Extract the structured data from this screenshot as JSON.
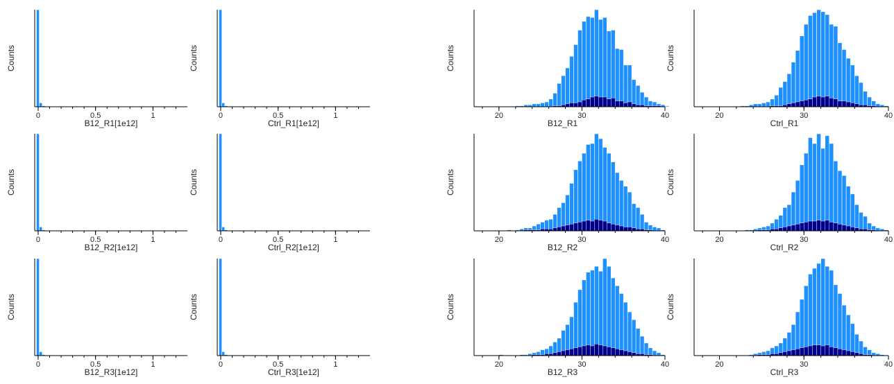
{
  "colors": {
    "all": "#1E90FF",
    "gated": "#00008B",
    "axis": "#000000",
    "bar_edge": "#ffffff"
  },
  "chart_data": [
    {
      "id": "lin_B12_R1",
      "type": "bar",
      "style": "linear",
      "xlabel": "B12_R1[1e12]",
      "ylabel": "Counts",
      "xlim": [
        -0.03,
        1.3
      ],
      "xticks": [
        0,
        0.5,
        1
      ],
      "xtick_labels": [
        "0",
        "0.5",
        "1"
      ],
      "bin_width": 0.025,
      "bin_start": -0.015,
      "ymax": 1.0,
      "all_values": [
        1.0,
        0.04,
        0.01,
        0.005
      ]
    },
    {
      "id": "lin_Ctrl_R1",
      "type": "bar",
      "style": "linear",
      "xlabel": "Ctrl_R1[1e12]",
      "ylabel": "Counts",
      "xlim": [
        -0.03,
        1.3
      ],
      "xticks": [
        0,
        0.5,
        1
      ],
      "xtick_labels": [
        "0",
        "0.5",
        "1"
      ],
      "bin_width": 0.025,
      "bin_start": -0.015,
      "ymax": 1.0,
      "all_values": [
        1.0,
        0.04,
        0.01,
        0.005
      ]
    },
    {
      "id": "log_B12_R1",
      "type": "bar",
      "style": "log",
      "xlabel": "B12_R1",
      "ylabel": "Counts",
      "xlim": [
        17,
        40
      ],
      "xticks": [
        20,
        30,
        40
      ],
      "xtick_labels": [
        "20",
        "30",
        "40"
      ],
      "bin_width": 0.5,
      "bin_start": 17.5,
      "ymax": 100,
      "all_values": [
        0,
        0,
        0,
        0,
        0,
        0,
        0,
        0,
        0,
        1,
        1,
        2,
        2,
        3,
        3,
        4,
        5,
        8,
        14,
        24,
        32,
        40,
        52,
        64,
        79,
        88,
        93,
        92,
        100,
        90,
        92,
        78,
        79,
        60,
        59,
        43,
        43,
        28,
        22,
        15,
        10,
        6,
        5,
        3,
        2,
        1
      ],
      "gated_values": [
        0,
        0,
        0,
        0,
        0,
        0,
        0,
        0,
        0,
        0,
        0,
        0,
        0,
        0,
        0,
        0,
        0,
        0,
        1,
        1,
        2,
        3,
        4,
        4,
        5,
        7,
        8,
        10,
        11,
        10,
        10,
        8,
        9,
        6,
        6,
        4,
        5,
        3,
        2,
        2,
        1,
        1,
        1,
        1,
        0,
        0
      ]
    },
    {
      "id": "log_Ctrl_R1",
      "type": "bar",
      "style": "log",
      "xlabel": "Ctrl_R1",
      "ylabel": "Counts",
      "xlim": [
        17,
        40
      ],
      "xticks": [
        20,
        30,
        40
      ],
      "xtick_labels": [
        "20",
        "30",
        "40"
      ],
      "bin_width": 0.5,
      "bin_start": 17.5,
      "ymax": 100,
      "all_values": [
        0,
        0,
        0,
        0,
        0,
        0,
        0,
        0,
        0,
        0,
        1,
        1,
        2,
        3,
        3,
        4,
        5,
        8,
        12,
        20,
        26,
        34,
        46,
        58,
        73,
        85,
        94,
        97,
        100,
        98,
        95,
        85,
        83,
        66,
        59,
        50,
        43,
        32,
        25,
        16,
        10,
        6,
        3,
        2,
        1,
        0
      ],
      "gated_values": [
        0,
        0,
        0,
        0,
        0,
        0,
        0,
        0,
        0,
        0,
        0,
        0,
        0,
        0,
        0,
        0,
        0,
        1,
        1,
        1,
        2,
        3,
        4,
        5,
        6,
        7,
        8,
        10,
        11,
        10,
        11,
        9,
        8,
        6,
        6,
        5,
        4,
        3,
        2,
        2,
        1,
        1,
        0,
        0,
        0,
        0
      ]
    },
    {
      "id": "lin_B12_R2",
      "type": "bar",
      "style": "linear",
      "xlabel": "B12_R2[1e12]",
      "ylabel": "Counts",
      "xlim": [
        -0.03,
        1.3
      ],
      "xticks": [
        0,
        0.5,
        1
      ],
      "xtick_labels": [
        "0",
        "0.5",
        "1"
      ],
      "bin_width": 0.025,
      "bin_start": -0.015,
      "ymax": 1.0,
      "all_values": [
        1.0,
        0.04,
        0.01,
        0.005
      ]
    },
    {
      "id": "lin_Ctrl_R2",
      "type": "bar",
      "style": "linear",
      "xlabel": "Ctrl_R2[1e12]",
      "ylabel": "Counts",
      "xlim": [
        -0.03,
        1.3
      ],
      "xticks": [
        0,
        0.5,
        1
      ],
      "xtick_labels": [
        "0",
        "0.5",
        "1"
      ],
      "bin_width": 0.025,
      "bin_start": -0.015,
      "ymax": 1.0,
      "all_values": [
        1.0,
        0.04,
        0.01,
        0.005
      ]
    },
    {
      "id": "log_B12_R2",
      "type": "bar",
      "style": "log",
      "xlabel": "B12_R2",
      "ylabel": "Counts",
      "xlim": [
        17,
        40
      ],
      "xticks": [
        20,
        30,
        40
      ],
      "xtick_labels": [
        "20",
        "30",
        "40"
      ],
      "bin_width": 0.5,
      "bin_start": 17.5,
      "ymax": 100,
      "all_values": [
        0,
        0,
        0,
        0,
        0,
        0,
        0,
        1,
        0,
        1,
        2,
        3,
        3,
        5,
        7,
        9,
        11,
        12,
        17,
        24,
        29,
        37,
        49,
        63,
        72,
        80,
        89,
        90,
        100,
        95,
        86,
        80,
        71,
        60,
        52,
        46,
        40,
        28,
        24,
        17,
        9,
        6,
        4,
        3,
        1,
        0
      ],
      "gated_values": [
        0,
        0,
        0,
        0,
        0,
        0,
        0,
        0,
        0,
        0,
        0,
        1,
        1,
        1,
        1,
        2,
        2,
        2,
        3,
        4,
        5,
        6,
        7,
        8,
        9,
        10,
        11,
        10,
        12,
        11,
        10,
        8,
        7,
        6,
        5,
        4,
        4,
        3,
        2,
        2,
        1,
        1,
        0,
        0,
        0,
        0
      ]
    },
    {
      "id": "log_Ctrl_R2",
      "type": "bar",
      "style": "log",
      "xlabel": "Ctrl_R2",
      "ylabel": "Counts",
      "xlim": [
        17,
        40
      ],
      "xticks": [
        20,
        30,
        40
      ],
      "xtick_labels": [
        "20",
        "30",
        "40"
      ],
      "bin_width": 0.5,
      "bin_start": 17.5,
      "ymax": 100,
      "all_values": [
        0,
        0,
        0,
        0,
        0,
        0,
        0,
        0,
        0,
        0,
        0,
        1,
        1,
        2,
        3,
        4,
        5,
        8,
        12,
        16,
        24,
        27,
        40,
        52,
        68,
        80,
        96,
        90,
        100,
        85,
        98,
        90,
        72,
        62,
        57,
        46,
        38,
        27,
        19,
        15,
        8,
        5,
        3,
        2,
        1,
        0
      ],
      "gated_values": [
        0,
        0,
        0,
        0,
        0,
        0,
        0,
        0,
        0,
        0,
        0,
        0,
        0,
        0,
        1,
        1,
        1,
        2,
        2,
        3,
        4,
        5,
        6,
        7,
        8,
        9,
        10,
        10,
        11,
        10,
        11,
        9,
        8,
        7,
        6,
        5,
        4,
        3,
        2,
        2,
        1,
        1,
        0,
        0,
        0,
        0
      ]
    },
    {
      "id": "lin_B12_R3",
      "type": "bar",
      "style": "linear",
      "xlabel": "B12_R3[1e12]",
      "ylabel": "Counts",
      "xlim": [
        -0.03,
        1.3
      ],
      "xticks": [
        0,
        0.5,
        1
      ],
      "xtick_labels": [
        "0",
        "0.5",
        "1"
      ],
      "bin_width": 0.025,
      "bin_start": -0.015,
      "ymax": 1.0,
      "all_values": [
        1.0,
        0.04,
        0.01,
        0.005
      ]
    },
    {
      "id": "lin_Ctrl_R3",
      "type": "bar",
      "style": "linear",
      "xlabel": "Ctrl_R3[1e12]",
      "ylabel": "Counts",
      "xlim": [
        -0.03,
        1.3
      ],
      "xticks": [
        0,
        0.5,
        1
      ],
      "xtick_labels": [
        "0",
        "0.5",
        "1"
      ],
      "bin_width": 0.025,
      "bin_start": -0.015,
      "ymax": 1.0,
      "all_values": [
        1.0,
        0.04,
        0.01,
        0.005
      ]
    },
    {
      "id": "log_B12_R3",
      "type": "bar",
      "style": "log",
      "xlabel": "B12_R3",
      "ylabel": "Counts",
      "xlim": [
        17,
        40
      ],
      "xticks": [
        20,
        30,
        40
      ],
      "xtick_labels": [
        "20",
        "30",
        "40"
      ],
      "bin_width": 0.5,
      "bin_start": 17.5,
      "ymax": 100,
      "all_values": [
        0,
        0,
        0,
        0,
        0,
        1,
        0,
        0,
        0,
        0,
        1,
        1,
        2,
        3,
        4,
        6,
        7,
        10,
        14,
        18,
        26,
        32,
        40,
        55,
        68,
        78,
        86,
        88,
        92,
        87,
        100,
        92,
        80,
        72,
        64,
        55,
        45,
        37,
        28,
        20,
        13,
        8,
        5,
        3,
        1,
        0
      ],
      "gated_values": [
        0,
        0,
        0,
        0,
        0,
        0,
        0,
        0,
        0,
        0,
        0,
        0,
        0,
        1,
        1,
        1,
        2,
        2,
        3,
        4,
        5,
        6,
        7,
        8,
        9,
        10,
        11,
        10,
        12,
        11,
        10,
        9,
        8,
        7,
        6,
        5,
        4,
        3,
        2,
        2,
        1,
        1,
        0,
        0,
        0,
        0
      ]
    },
    {
      "id": "log_Ctrl_R3",
      "type": "bar",
      "style": "log",
      "xlabel": "Ctrl_R3",
      "ylabel": "Counts",
      "xlim": [
        17,
        40
      ],
      "xticks": [
        20,
        30,
        40
      ],
      "xtick_labels": [
        "20",
        "30",
        "40"
      ],
      "bin_width": 0.5,
      "bin_start": 17.5,
      "ymax": 100,
      "all_values": [
        0,
        0,
        0,
        0,
        0,
        0,
        0,
        0,
        0,
        0,
        0,
        0,
        1,
        2,
        3,
        4,
        5,
        8,
        10,
        13,
        18,
        24,
        32,
        45,
        58,
        72,
        84,
        90,
        95,
        100,
        92,
        88,
        73,
        64,
        52,
        42,
        33,
        22,
        15,
        9,
        6,
        3,
        2,
        1,
        0,
        0
      ],
      "gated_values": [
        0,
        0,
        0,
        0,
        0,
        0,
        0,
        0,
        0,
        0,
        0,
        0,
        0,
        0,
        1,
        1,
        1,
        2,
        2,
        3,
        4,
        5,
        6,
        7,
        8,
        9,
        10,
        11,
        11,
        10,
        11,
        9,
        8,
        7,
        6,
        5,
        4,
        3,
        2,
        1,
        1,
        0,
        0,
        0,
        0,
        0
      ]
    }
  ]
}
